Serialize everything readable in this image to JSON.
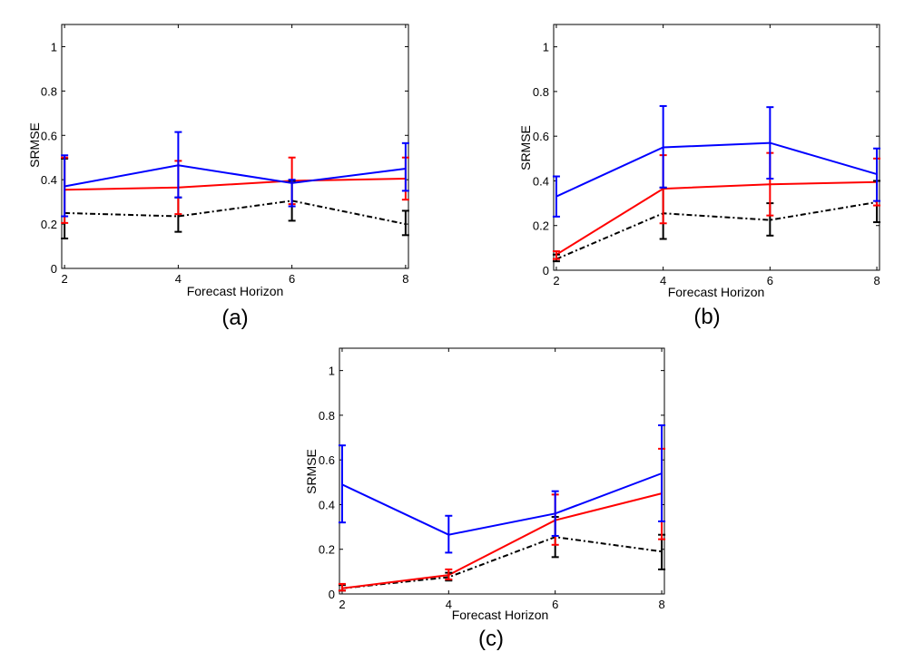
{
  "colors": {
    "blue": "#0000ff",
    "red": "#ff0000",
    "black": "#000000"
  },
  "chart_data": [
    {
      "type": "line",
      "panel_label": "(a)",
      "xlabel": "Forecast Horizon",
      "ylabel": "SRMSE",
      "x": [
        2,
        4,
        6,
        8
      ],
      "xlim": [
        1.95,
        8.05
      ],
      "ylim": [
        0,
        1.1
      ],
      "xticks": [
        "2",
        "4",
        "6",
        "8"
      ],
      "yticks": [
        "0",
        "0.2",
        "0.4",
        "0.6",
        "0.8",
        "1"
      ],
      "grid": false,
      "series": [
        {
          "name": "blue",
          "color": "#0000ff",
          "style": "solid",
          "values": [
            0.37,
            0.465,
            0.385,
            0.45
          ],
          "err_low": [
            0.235,
            0.32,
            0.28,
            0.35
          ],
          "err_high": [
            0.51,
            0.615,
            0.4,
            0.565
          ]
        },
        {
          "name": "red",
          "color": "#ff0000",
          "style": "solid",
          "values": [
            0.355,
            0.365,
            0.395,
            0.405
          ],
          "err_low": [
            0.205,
            0.245,
            0.29,
            0.31
          ],
          "err_high": [
            0.5,
            0.485,
            0.5,
            0.5
          ]
        },
        {
          "name": "black",
          "color": "#000000",
          "style": "dashdot",
          "values": [
            0.25,
            0.235,
            0.305,
            0.2
          ],
          "err_low": [
            0.135,
            0.165,
            0.215,
            0.15
          ],
          "err_high": [
            0.495,
            0.32,
            0.395,
            0.26
          ]
        }
      ]
    },
    {
      "type": "line",
      "panel_label": "(b)",
      "xlabel": "Forecast Horizon",
      "ylabel": "SRMSE",
      "x": [
        2,
        4,
        6,
        8
      ],
      "xlim": [
        1.95,
        8.05
      ],
      "ylim": [
        0,
        1.1
      ],
      "xticks": [
        "2",
        "4",
        "6",
        "8"
      ],
      "yticks": [
        "0",
        "0.2",
        "0.4",
        "0.6",
        "0.8",
        "1"
      ],
      "grid": false,
      "series": [
        {
          "name": "blue",
          "color": "#0000ff",
          "style": "solid",
          "values": [
            0.33,
            0.55,
            0.57,
            0.43
          ],
          "err_low": [
            0.24,
            0.37,
            0.41,
            0.31
          ],
          "err_high": [
            0.42,
            0.735,
            0.73,
            0.545
          ]
        },
        {
          "name": "red",
          "color": "#ff0000",
          "style": "solid",
          "values": [
            0.07,
            0.365,
            0.385,
            0.395
          ],
          "err_low": [
            0.05,
            0.21,
            0.245,
            0.29
          ],
          "err_high": [
            0.085,
            0.515,
            0.525,
            0.5
          ]
        },
        {
          "name": "black",
          "color": "#000000",
          "style": "dashdot",
          "values": [
            0.05,
            0.255,
            0.225,
            0.305
          ],
          "err_low": [
            0.04,
            0.14,
            0.155,
            0.215
          ],
          "err_high": [
            0.07,
            0.37,
            0.3,
            0.4
          ]
        }
      ]
    },
    {
      "type": "line",
      "panel_label": "(c)",
      "xlabel": "Forecast Horizon",
      "ylabel": "SRMSE",
      "x": [
        2,
        4,
        6,
        8
      ],
      "xlim": [
        1.95,
        8.05
      ],
      "ylim": [
        0,
        1.1
      ],
      "xticks": [
        "2",
        "4",
        "6",
        "8"
      ],
      "yticks": [
        "0",
        "0.2",
        "0.4",
        "0.6",
        "0.8",
        "1"
      ],
      "grid": false,
      "series": [
        {
          "name": "blue",
          "color": "#0000ff",
          "style": "solid",
          "values": [
            0.49,
            0.265,
            0.36,
            0.54
          ],
          "err_low": [
            0.32,
            0.185,
            0.26,
            0.325
          ],
          "err_high": [
            0.665,
            0.35,
            0.46,
            0.755
          ]
        },
        {
          "name": "red",
          "color": "#ff0000",
          "style": "solid",
          "values": [
            0.025,
            0.085,
            0.33,
            0.45
          ],
          "err_low": [
            0.015,
            0.065,
            0.22,
            0.245
          ],
          "err_high": [
            0.045,
            0.11,
            0.445,
            0.65
          ]
        },
        {
          "name": "black",
          "color": "#000000",
          "style": "dashdot",
          "values": [
            0.025,
            0.075,
            0.255,
            0.19
          ],
          "err_low": [
            0.015,
            0.06,
            0.165,
            0.11
          ],
          "err_high": [
            0.04,
            0.095,
            0.345,
            0.265
          ]
        }
      ]
    }
  ]
}
